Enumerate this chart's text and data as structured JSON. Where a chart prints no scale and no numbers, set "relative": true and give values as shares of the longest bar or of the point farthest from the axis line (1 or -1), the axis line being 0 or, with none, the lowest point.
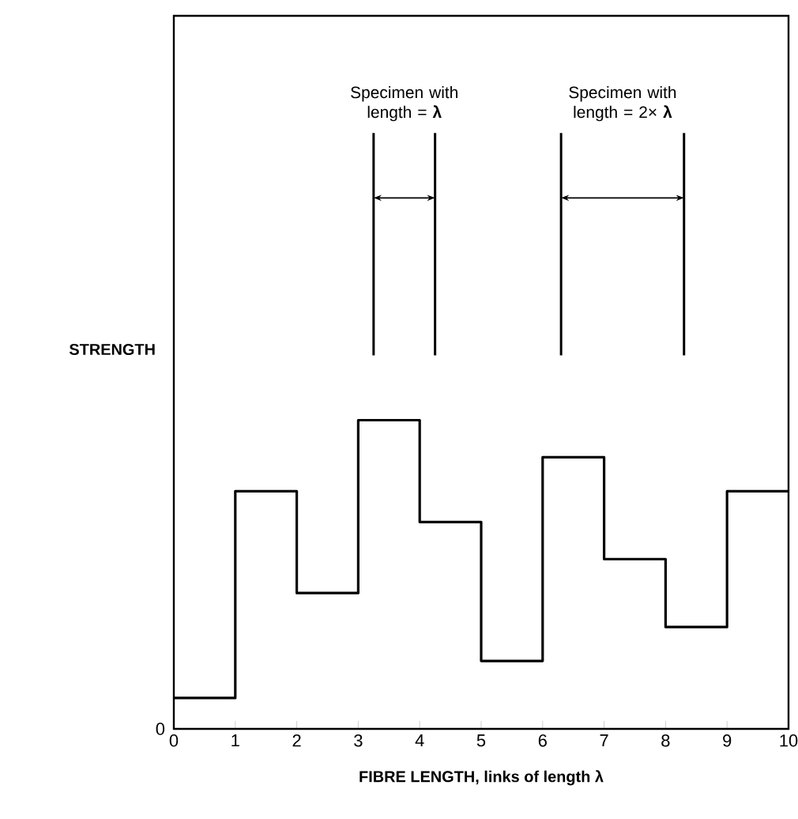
{
  "chart_data": {
    "type": "step",
    "relative": true,
    "xlabel": "FIBRE LENGTH, links of length λ",
    "ylabel": "STRENGTH",
    "x": [
      0,
      1,
      2,
      3,
      4,
      5,
      6,
      7,
      8,
      9,
      10
    ],
    "values": [
      0.1,
      0.77,
      0.44,
      1,
      0.67,
      0.22,
      0.88,
      0.55,
      0.33,
      0.77,
      0.77
    ],
    "color": "#000000",
    "xlim": [
      0,
      10
    ],
    "xticks": [
      0,
      1,
      2,
      3,
      4,
      5,
      6,
      7,
      8,
      9,
      10
    ],
    "grid": false,
    "marker": "none",
    "line_style": "solid",
    "annotations": [
      "0",
      "Specimen with length = **λ**",
      "Specimen with length = 2× **λ**"
    ]
  }
}
